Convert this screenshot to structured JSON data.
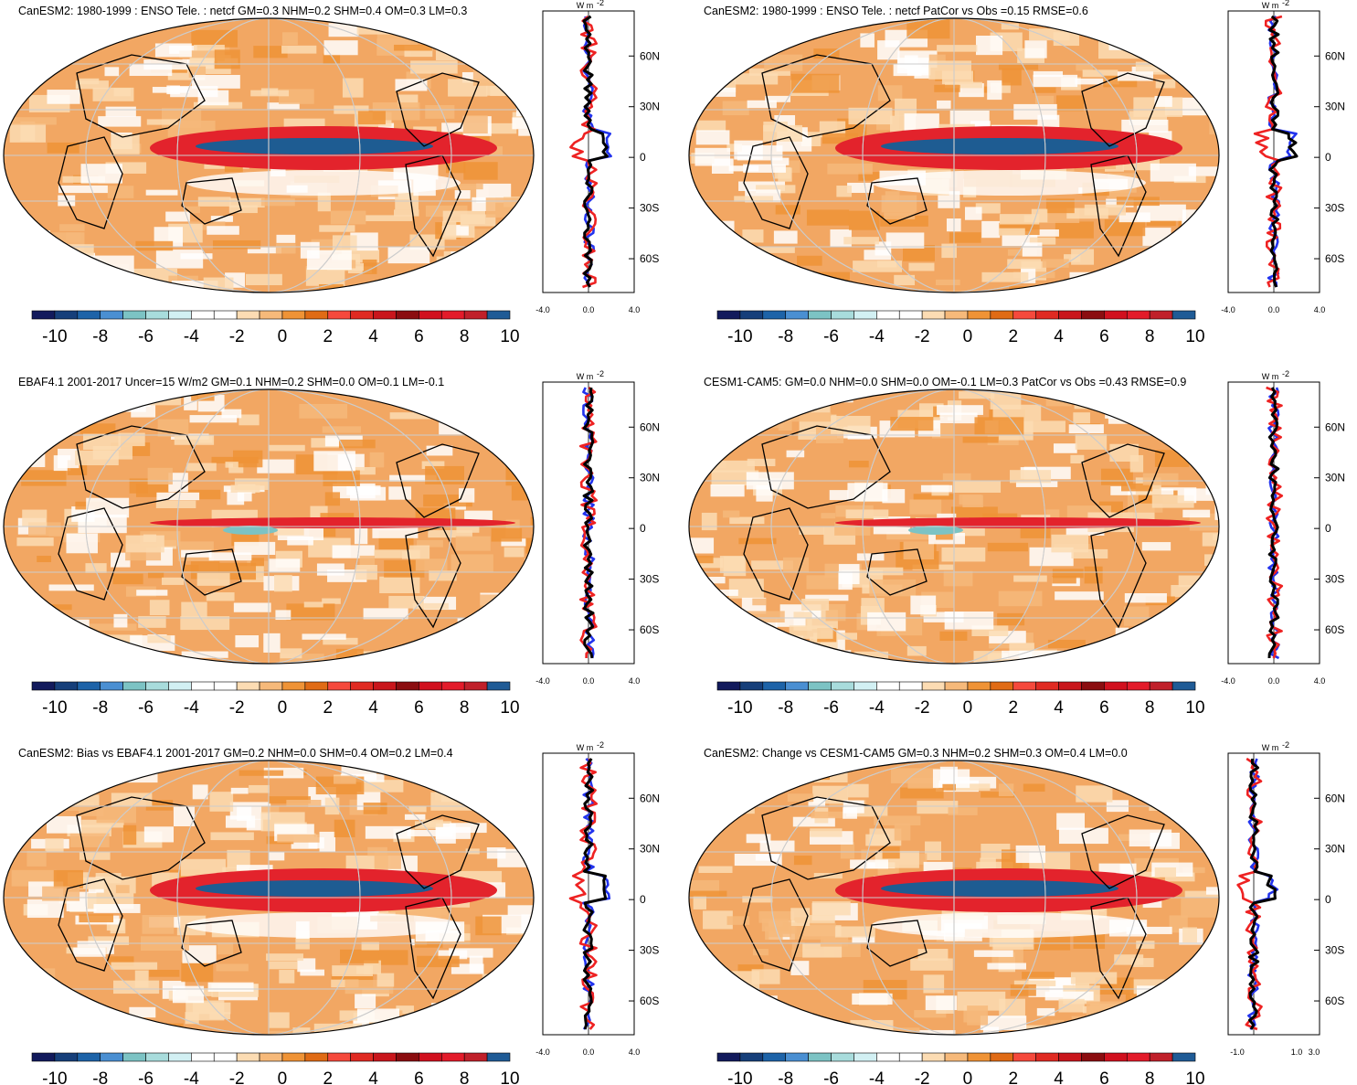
{
  "colors": {
    "scale": [
      "#121a5c",
      "#163f7a",
      "#1d63a8",
      "#4a8fd2",
      "#7cc3c4",
      "#a8dcdc",
      "#d2f0f3",
      "#ffffff",
      "#ffffff",
      "#fcdcb3",
      "#f6b97a",
      "#ef9336",
      "#e06b15",
      "#f5493c",
      "#e02a22",
      "#c9161c",
      "#8b0d10",
      "#d1101e",
      "#e31b2a",
      "#c0202a",
      "#1f5b96"
    ],
    "land_fill": "#f5c595",
    "ocean_main": "#f2a763",
    "enso_red": "#e3232c",
    "enso_blue": "#1e5c92",
    "line_blue": "#2233ee",
    "line_red": "#ee2222",
    "line_black": "#000000"
  },
  "colorbar": {
    "labels": [
      "-10",
      "-8",
      "-6",
      "-4",
      "-2",
      "0",
      "2",
      "4",
      "6",
      "8",
      "10"
    ]
  },
  "panels": [
    {
      "id": "p1",
      "title": "CanESM2: 1980-1999 : ENSO Tele. : netcf GM=0.3 NHM=0.2 SHM=0.4 OM=0.3 LM=0.3",
      "unit": "W m",
      "unit_sup": "-2",
      "lat_labels": [
        "60N",
        "30N",
        "0",
        "30S",
        "60S"
      ],
      "x_labels": [
        "-4.0",
        "0.0",
        "4.0"
      ]
    },
    {
      "id": "p2",
      "title": "CanESM2: 1980-1999 : ENSO Tele. : netcf PatCor vs Obs =0.15 RMSE=0.6",
      "unit": "W m",
      "unit_sup": "-2",
      "lat_labels": [
        "60N",
        "30N",
        "0",
        "30S",
        "60S"
      ],
      "x_labels": [
        "-4.0",
        "0.0",
        "4.0"
      ]
    },
    {
      "id": "p3",
      "title": "EBAF4.1 2001-2017 Uncer=15 W/m2 GM=0.1 NHM=0.2 SHM=0.0 OM=0.1 LM=-0.1",
      "unit": "W m",
      "unit_sup": "-2",
      "lat_labels": [
        "60N",
        "30N",
        "0",
        "30S",
        "60S"
      ],
      "x_labels": [
        "-4.0",
        "0.0",
        "4.0"
      ]
    },
    {
      "id": "p4",
      "title": "CESM1-CAM5: GM=0.0 NHM=0.0 SHM=0.0 OM=-0.1 LM=0.3 PatCor vs Obs =0.43 RMSE=0.9",
      "unit": "W m",
      "unit_sup": "-2",
      "lat_labels": [
        "60N",
        "30N",
        "0",
        "30S",
        "60S"
      ],
      "x_labels": [
        "-4.0",
        "0.0",
        "4.0"
      ]
    },
    {
      "id": "p5",
      "title": "CanESM2: Bias vs EBAF4.1 2001-2017 GM=0.2 NHM=0.0 SHM=0.4 OM=0.2 LM=0.4",
      "unit": "W m",
      "unit_sup": "-2",
      "lat_labels": [
        "60N",
        "30N",
        "0",
        "30S",
        "60S"
      ],
      "x_labels": [
        "-4.0",
        "0.0",
        "4.0"
      ]
    },
    {
      "id": "p6",
      "title": "CanESM2: Change vs CESM1-CAM5 GM=0.3 NHM=0.2 SHM=0.3 OM=0.4 LM=0.0",
      "unit": "W m",
      "unit_sup": "-2",
      "lat_labels": [
        "60N",
        "30N",
        "0",
        "30S",
        "60S"
      ],
      "x_labels": [
        "-1.0",
        "1.0",
        "3.0"
      ]
    }
  ]
}
